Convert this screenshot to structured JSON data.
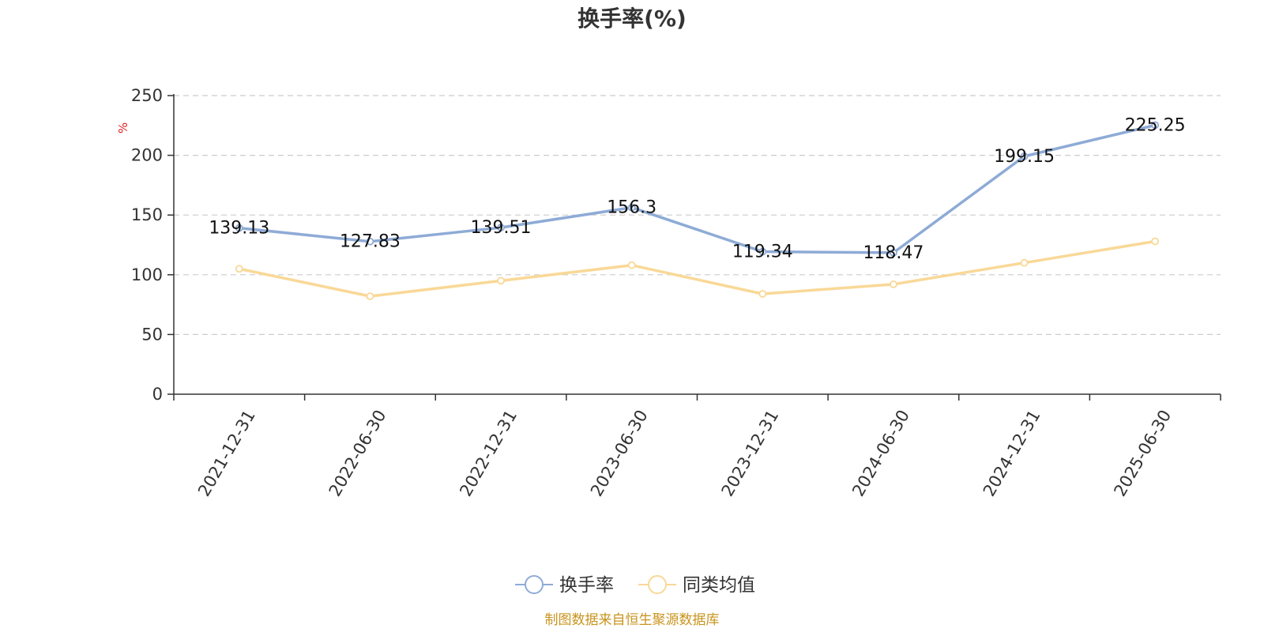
{
  "chart_data": {
    "type": "line",
    "title": "换手率(%)",
    "ylabel": "%",
    "xlabel": "",
    "ylim": [
      0,
      250
    ],
    "y_ticks": [
      0,
      50,
      100,
      150,
      200,
      250
    ],
    "grid": true,
    "legend_position": "bottom",
    "categories": [
      "2021-12-31",
      "2022-06-30",
      "2022-12-31",
      "2023-06-30",
      "2023-12-31",
      "2024-06-30",
      "2024-12-31",
      "2025-06-30"
    ],
    "series": [
      {
        "name": "换手率",
        "color": "#8eabd6",
        "values": [
          139.13,
          127.83,
          139.51,
          156.3,
          119.34,
          118.47,
          199.15,
          225.25
        ],
        "show_labels": true
      },
      {
        "name": "同类均值",
        "color": "#f9d897",
        "values": [
          105,
          82,
          95,
          108,
          84,
          92,
          110,
          128
        ],
        "show_labels": false
      }
    ]
  },
  "source_note": "制图数据来自恒生聚源数据库",
  "colors": {
    "axis": "#333333",
    "grid": "#cccccc",
    "ylabel": "#e02020",
    "source": "#c8941e"
  }
}
